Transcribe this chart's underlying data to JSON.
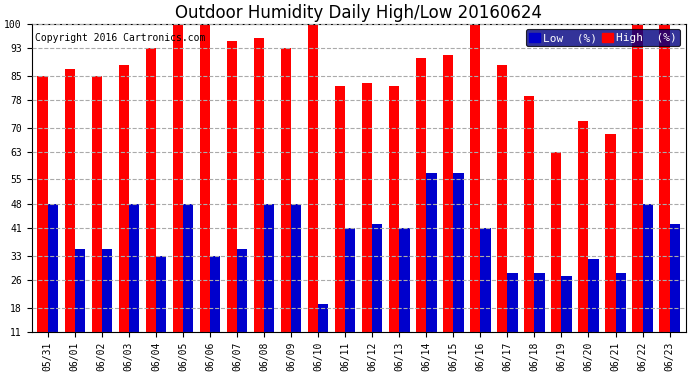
{
  "title": "Outdoor Humidity Daily High/Low 20160624",
  "copyright": "Copyright 2016 Cartronics.com",
  "dates": [
    "05/31",
    "06/01",
    "06/02",
    "06/03",
    "06/04",
    "06/05",
    "06/06",
    "06/07",
    "06/08",
    "06/09",
    "06/10",
    "06/11",
    "06/12",
    "06/13",
    "06/14",
    "06/15",
    "06/16",
    "06/17",
    "06/18",
    "06/19",
    "06/20",
    "06/21",
    "06/22",
    "06/23"
  ],
  "high": [
    85,
    87,
    85,
    88,
    93,
    100,
    100,
    95,
    96,
    93,
    100,
    82,
    83,
    82,
    90,
    91,
    100,
    88,
    79,
    63,
    72,
    68,
    100,
    100
  ],
  "low": [
    48,
    35,
    35,
    48,
    33,
    48,
    33,
    35,
    48,
    48,
    19,
    41,
    42,
    41,
    57,
    57,
    41,
    28,
    28,
    27,
    32,
    28,
    48,
    42
  ],
  "high_color": "#ff0000",
  "low_color": "#0000cc",
  "background_color": "#ffffff",
  "grid_color": "#aaaaaa",
  "yticks": [
    11,
    18,
    26,
    33,
    41,
    48,
    55,
    63,
    70,
    78,
    85,
    93,
    100
  ],
  "ylim_min": 11,
  "ylim_max": 100,
  "bar_width": 0.38,
  "title_fontsize": 12,
  "legend_fontsize": 8,
  "tick_fontsize": 7,
  "copyright_fontsize": 7
}
